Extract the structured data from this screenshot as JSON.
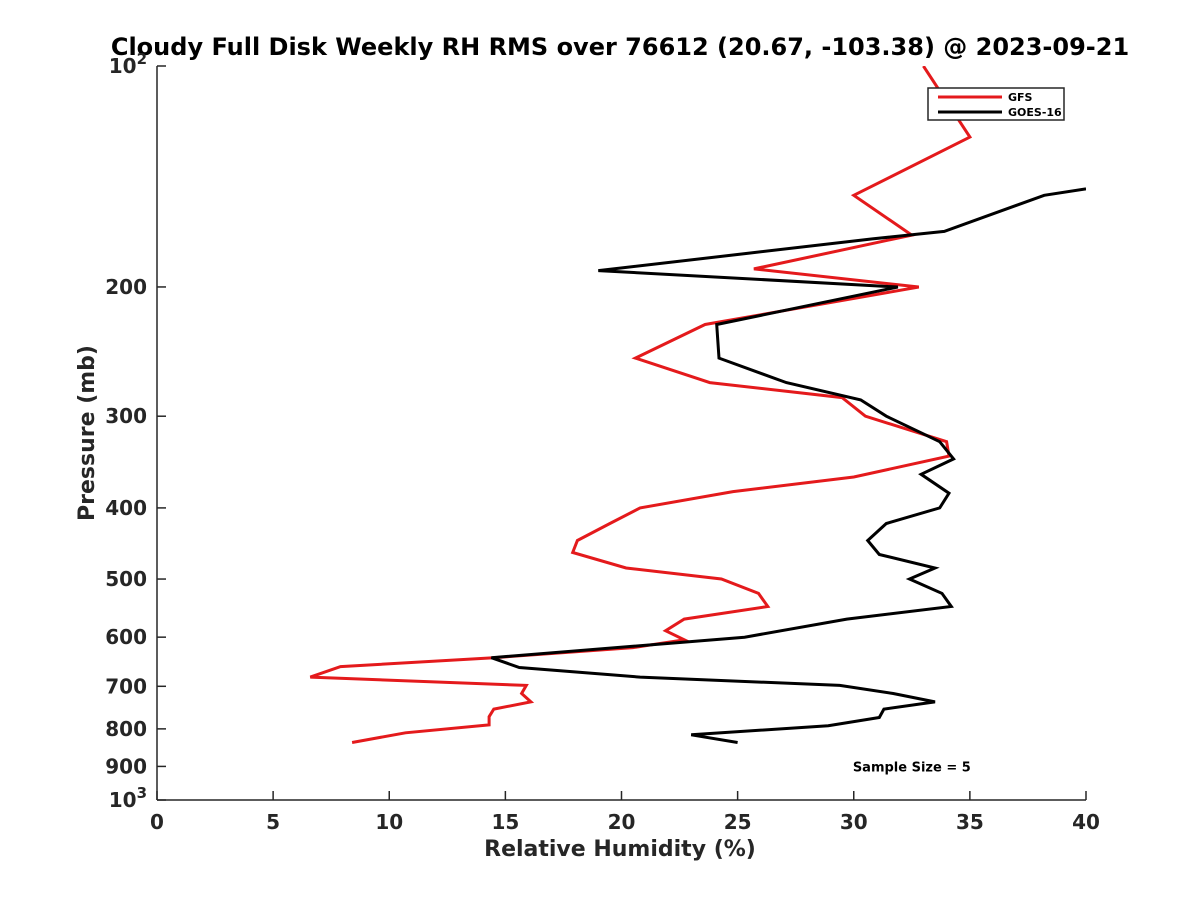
{
  "chart_data": {
    "type": "line",
    "title": "Cloudy Full Disk Weekly RH RMS over 76612 (20.67, -103.38) @ 2023-09-21",
    "xlabel": "Relative Humidity (%)",
    "ylabel": "Pressure (mb)",
    "xlim": [
      0,
      40
    ],
    "ylim": [
      100,
      1000
    ],
    "yscale": "log",
    "y_reversed": true,
    "grid": false,
    "legend_position": "top-right",
    "x_ticks": [
      {
        "value": 0,
        "label": "0"
      },
      {
        "value": 5,
        "label": "5"
      },
      {
        "value": 10,
        "label": "10"
      },
      {
        "value": 15,
        "label": "15"
      },
      {
        "value": 20,
        "label": "20"
      },
      {
        "value": 25,
        "label": "25"
      },
      {
        "value": 30,
        "label": "30"
      },
      {
        "value": 35,
        "label": "35"
      },
      {
        "value": 40,
        "label": "40"
      }
    ],
    "y_ticks": [
      {
        "value": 100,
        "base": "10",
        "exp": "2"
      },
      {
        "value": 200,
        "base": "200",
        "exp": ""
      },
      {
        "value": 300,
        "base": "300",
        "exp": ""
      },
      {
        "value": 400,
        "base": "400",
        "exp": ""
      },
      {
        "value": 500,
        "base": "500",
        "exp": ""
      },
      {
        "value": 600,
        "base": "600",
        "exp": ""
      },
      {
        "value": 700,
        "base": "700",
        "exp": ""
      },
      {
        "value": 800,
        "base": "800",
        "exp": ""
      },
      {
        "value": 900,
        "base": "900",
        "exp": ""
      },
      {
        "value": 1000,
        "base": "10",
        "exp": "3"
      }
    ],
    "series": [
      {
        "name": "GFS",
        "color": "#e41a1c",
        "points": [
          {
            "x": 33.0,
            "p": 100
          },
          {
            "x": 35.0,
            "p": 125
          },
          {
            "x": 30.0,
            "p": 150
          },
          {
            "x": 32.5,
            "p": 170
          },
          {
            "x": 25.7,
            "p": 189
          },
          {
            "x": 32.8,
            "p": 200
          },
          {
            "x": 23.6,
            "p": 225
          },
          {
            "x": 20.6,
            "p": 250
          },
          {
            "x": 23.8,
            "p": 270
          },
          {
            "x": 29.5,
            "p": 283
          },
          {
            "x": 30.5,
            "p": 300
          },
          {
            "x": 34.0,
            "p": 325
          },
          {
            "x": 34.1,
            "p": 340
          },
          {
            "x": 30.0,
            "p": 363
          },
          {
            "x": 24.8,
            "p": 380
          },
          {
            "x": 20.8,
            "p": 400
          },
          {
            "x": 19.5,
            "p": 420
          },
          {
            "x": 18.1,
            "p": 443
          },
          {
            "x": 17.9,
            "p": 460
          },
          {
            "x": 20.2,
            "p": 483
          },
          {
            "x": 24.3,
            "p": 500
          },
          {
            "x": 25.9,
            "p": 523
          },
          {
            "x": 26.3,
            "p": 545
          },
          {
            "x": 22.7,
            "p": 567
          },
          {
            "x": 21.9,
            "p": 588
          },
          {
            "x": 22.7,
            "p": 605
          },
          {
            "x": 20.5,
            "p": 620
          },
          {
            "x": 14.5,
            "p": 640
          },
          {
            "x": 7.9,
            "p": 658
          },
          {
            "x": 6.6,
            "p": 680
          },
          {
            "x": 15.9,
            "p": 698
          },
          {
            "x": 15.7,
            "p": 716
          },
          {
            "x": 16.1,
            "p": 735
          },
          {
            "x": 14.5,
            "p": 752
          },
          {
            "x": 14.3,
            "p": 770
          },
          {
            "x": 14.3,
            "p": 790
          },
          {
            "x": 10.7,
            "p": 810
          },
          {
            "x": 8.4,
            "p": 835
          }
        ]
      },
      {
        "name": "GOES-16",
        "color": "#000000",
        "points": [
          {
            "x": 40.0,
            "p": 147
          },
          {
            "x": 38.2,
            "p": 150
          },
          {
            "x": 33.9,
            "p": 168
          },
          {
            "x": 30.8,
            "p": 172
          },
          {
            "x": 19.0,
            "p": 190
          },
          {
            "x": 31.9,
            "p": 200
          },
          {
            "x": 24.1,
            "p": 225
          },
          {
            "x": 24.2,
            "p": 250
          },
          {
            "x": 27.1,
            "p": 270
          },
          {
            "x": 30.3,
            "p": 285
          },
          {
            "x": 31.4,
            "p": 300
          },
          {
            "x": 33.7,
            "p": 325
          },
          {
            "x": 34.3,
            "p": 343
          },
          {
            "x": 32.9,
            "p": 360
          },
          {
            "x": 34.1,
            "p": 382
          },
          {
            "x": 33.7,
            "p": 400
          },
          {
            "x": 31.4,
            "p": 420
          },
          {
            "x": 30.6,
            "p": 443
          },
          {
            "x": 31.1,
            "p": 463
          },
          {
            "x": 33.5,
            "p": 483
          },
          {
            "x": 32.4,
            "p": 500
          },
          {
            "x": 33.8,
            "p": 523
          },
          {
            "x": 34.2,
            "p": 545
          },
          {
            "x": 29.7,
            "p": 567
          },
          {
            "x": 25.3,
            "p": 600
          },
          {
            "x": 14.4,
            "p": 640
          },
          {
            "x": 15.6,
            "p": 660
          },
          {
            "x": 20.8,
            "p": 680
          },
          {
            "x": 29.4,
            "p": 698
          },
          {
            "x": 31.7,
            "p": 716
          },
          {
            "x": 33.5,
            "p": 735
          },
          {
            "x": 31.3,
            "p": 752
          },
          {
            "x": 31.1,
            "p": 772
          },
          {
            "x": 28.9,
            "p": 792
          },
          {
            "x": 23.0,
            "p": 815
          },
          {
            "x": 25.0,
            "p": 835
          }
        ]
      }
    ],
    "annotations": [
      {
        "text": "Sample Size = 5",
        "x": 32.5,
        "p": 900
      }
    ]
  }
}
